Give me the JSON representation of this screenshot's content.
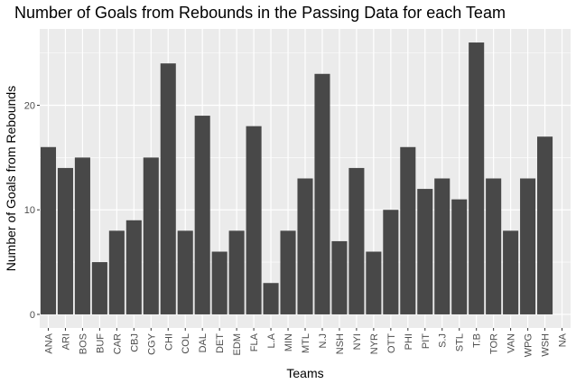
{
  "chart_data": {
    "type": "bar",
    "title": "Number of Goals from Rebounds in the Passing Data for each Team",
    "xlabel": "Teams",
    "ylabel": "Number of Goals from Rebounds",
    "categories": [
      "ANA",
      "ARI",
      "BOS",
      "BUF",
      "CAR",
      "CBJ",
      "CGY",
      "CHI",
      "COL",
      "DAL",
      "DET",
      "EDM",
      "FLA",
      "L.A",
      "MIN",
      "MTL",
      "N.J",
      "NSH",
      "NYI",
      "NYR",
      "OTT",
      "PHI",
      "PIT",
      "S.J",
      "STL",
      "T.B",
      "TOR",
      "VAN",
      "WPG",
      "WSH",
      "NA"
    ],
    "values": [
      16,
      14,
      15,
      5,
      8,
      9,
      15,
      24,
      8,
      19,
      6,
      8,
      18,
      3,
      8,
      13,
      23,
      7,
      14,
      6,
      10,
      16,
      12,
      13,
      11,
      26,
      13,
      8,
      13,
      17,
      null
    ],
    "yticks": [
      0,
      10,
      20
    ],
    "ylim": [
      -1.3,
      27.3
    ],
    "grid": true,
    "colors": {
      "panel": "#ebebeb",
      "bar": "#484848",
      "grid": "#ffffff"
    }
  }
}
